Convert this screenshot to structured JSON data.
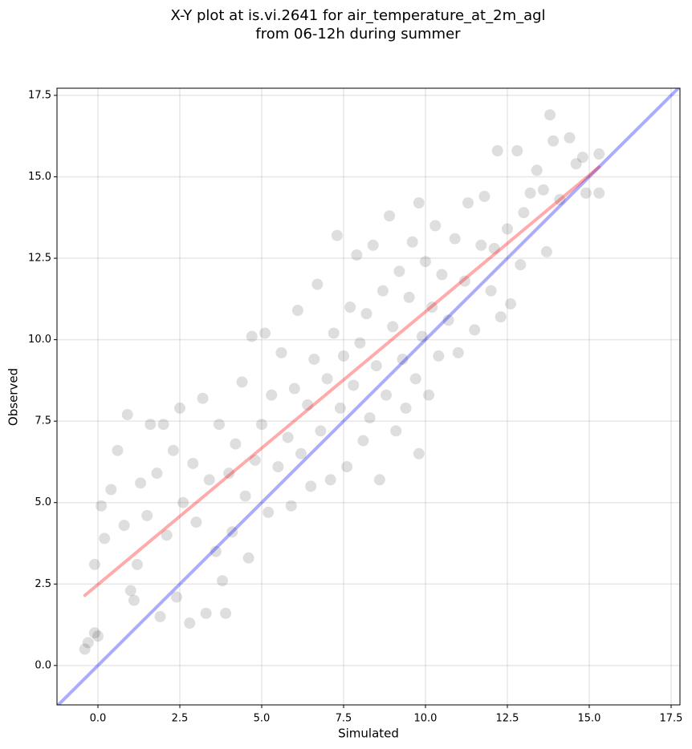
{
  "chart_data": {
    "type": "scatter",
    "title": [
      "X-Y plot at is.vi.2641 for air_temperature_at_2m_agl",
      "from 06-12h during summer"
    ],
    "x_label": "Simulated",
    "y_label": "Observed",
    "xlim": [
      -1.25,
      17.77
    ],
    "ylim": [
      -1.21,
      17.72
    ],
    "grid": true,
    "xticks": [
      {
        "value": 0,
        "label": "0.0"
      },
      {
        "value": 2.5,
        "label": "2.5"
      },
      {
        "value": 5,
        "label": "5.0"
      },
      {
        "value": 7.5,
        "label": "7.5"
      },
      {
        "value": 10,
        "label": "10.0"
      },
      {
        "value": 12.5,
        "label": "12.5"
      },
      {
        "value": 15,
        "label": "15.0"
      },
      {
        "value": 17.5,
        "label": "17.5"
      }
    ],
    "yticks": [
      {
        "value": 0,
        "label": "0.0"
      },
      {
        "value": 2.5,
        "label": "2.5"
      },
      {
        "value": 5,
        "label": "5.0"
      },
      {
        "value": 7.5,
        "label": "7.5"
      },
      {
        "value": 10,
        "label": "10.0"
      },
      {
        "value": 12.5,
        "label": "12.5"
      },
      {
        "value": 15,
        "label": "15.0"
      },
      {
        "value": 17.5,
        "label": "17.5"
      }
    ],
    "series": [
      {
        "type": "scatter",
        "color": "#000000",
        "x": [
          -0.4,
          -0.3,
          -0.1,
          0.0,
          -0.1,
          0.1,
          0.2,
          0.4,
          0.6,
          0.8,
          0.9,
          1.0,
          1.1,
          1.2,
          1.3,
          1.5,
          1.6,
          1.8,
          1.9,
          2.0,
          2.1,
          2.3,
          2.4,
          2.5,
          2.6,
          2.8,
          2.9,
          3.0,
          3.2,
          3.3,
          3.4,
          3.6,
          3.7,
          3.8,
          3.9,
          4.0,
          4.1,
          4.2,
          4.4,
          4.5,
          4.6,
          4.7,
          4.8,
          5.0,
          5.1,
          5.2,
          5.3,
          5.5,
          5.6,
          5.8,
          5.9,
          6.0,
          6.1,
          6.2,
          6.4,
          6.5,
          6.6,
          6.7,
          6.8,
          7.0,
          7.1,
          7.2,
          7.3,
          7.4,
          7.5,
          7.6,
          7.7,
          7.8,
          7.9,
          8.0,
          8.1,
          8.2,
          8.3,
          8.4,
          8.5,
          8.6,
          8.7,
          8.8,
          8.9,
          9.0,
          9.1,
          9.2,
          9.3,
          9.4,
          9.5,
          9.6,
          9.7,
          9.8,
          9.8,
          9.9,
          10.0,
          10.1,
          10.2,
          10.3,
          10.4,
          10.5,
          10.7,
          10.9,
          11.0,
          11.2,
          11.3,
          11.5,
          11.7,
          11.8,
          12.0,
          12.1,
          12.2,
          12.3,
          12.5,
          12.6,
          12.8,
          12.9,
          13.0,
          13.2,
          13.4,
          13.6,
          13.7,
          13.8,
          13.9,
          14.1,
          14.4,
          14.6,
          14.8,
          14.9,
          15.3,
          15.3
        ],
        "values": [
          0.5,
          0.7,
          1.0,
          0.9,
          3.1,
          4.9,
          3.9,
          5.4,
          6.6,
          4.3,
          7.7,
          2.3,
          2.0,
          3.1,
          5.6,
          4.6,
          7.4,
          5.9,
          1.5,
          7.4,
          4.0,
          6.6,
          2.1,
          7.9,
          5.0,
          1.3,
          6.2,
          4.4,
          8.2,
          1.6,
          5.7,
          3.5,
          7.4,
          2.6,
          1.6,
          5.9,
          4.1,
          6.8,
          8.7,
          5.2,
          3.3,
          10.1,
          6.3,
          7.4,
          10.2,
          4.7,
          8.3,
          6.1,
          9.6,
          7.0,
          4.9,
          8.5,
          10.9,
          6.5,
          8.0,
          5.5,
          9.4,
          11.7,
          7.2,
          8.8,
          5.7,
          10.2,
          13.2,
          7.9,
          9.5,
          6.1,
          11.0,
          8.6,
          12.6,
          9.9,
          6.9,
          10.8,
          7.6,
          12.9,
          9.2,
          5.7,
          11.5,
          8.3,
          13.8,
          10.4,
          7.2,
          12.1,
          9.4,
          7.9,
          11.3,
          13.0,
          8.8,
          14.2,
          6.5,
          10.1,
          12.4,
          8.3,
          11.0,
          13.5,
          9.5,
          12.0,
          10.6,
          13.1,
          9.6,
          11.8,
          14.2,
          10.3,
          12.9,
          14.4,
          11.5,
          12.8,
          15.8,
          10.7,
          13.4,
          11.1,
          15.8,
          12.3,
          13.9,
          14.5,
          15.2,
          14.6,
          12.7,
          16.9,
          16.1,
          14.3,
          16.2,
          15.4,
          15.6,
          14.5,
          15.7,
          14.5
        ]
      },
      {
        "type": "line",
        "color": "#0000ff",
        "x": [
          -1.25,
          17.77
        ],
        "values": [
          -1.25,
          17.77
        ]
      },
      {
        "type": "line",
        "color": "#ff0000",
        "x": [
          -0.4,
          15.3
        ],
        "values": [
          2.15,
          15.3
        ]
      }
    ]
  }
}
